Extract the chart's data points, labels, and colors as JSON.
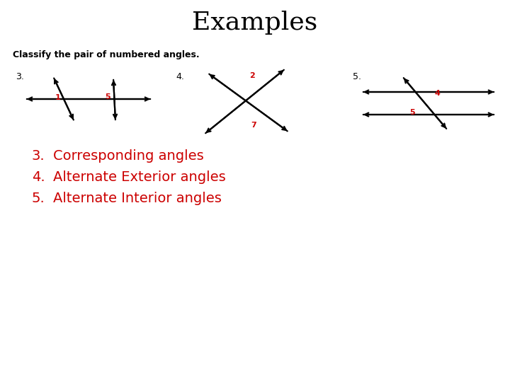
{
  "title": "Examples",
  "title_fontsize": 26,
  "title_font": "DejaVu Serif",
  "subtitle": "Classify the pair of numbered angles.",
  "subtitle_fontsize": 9,
  "background_color": "#ffffff",
  "answers": [
    {
      "num": "3.",
      "text": "  Corresponding angles"
    },
    {
      "num": "4.",
      "text": "  Alternate Exterior angles"
    },
    {
      "num": "5.",
      "text": "  Alternate Interior angles"
    }
  ],
  "answer_color": "#cc0000",
  "answer_fontsize": 14,
  "label_color_red": "#cc0000",
  "label_color_black": "#000000",
  "diagram_label_fontsize": 8
}
